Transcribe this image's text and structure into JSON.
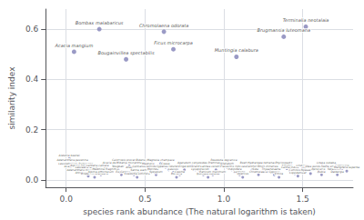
{
  "chart_data": {
    "type": "scatter",
    "title": "",
    "xlabel": "species rank abundance (The natural logarithm is taken)",
    "ylabel": "similarity index",
    "xlim": [
      -0.13,
      1.82
    ],
    "ylim": [
      -0.03,
      0.68
    ],
    "xticks": [
      {
        "value": 0.0,
        "label": "0.0"
      },
      0.5,
      {
        "value": 1.0,
        "label": "1.0"
      },
      1.5
    ],
    "yticks": [
      {
        "value": 0.0,
        "label": "0.0"
      },
      0.2,
      0.4,
      0.6
    ],
    "grid": true,
    "color": "#8888bb",
    "series": [
      {
        "x": [
          0.02,
          0.04,
          0.06,
          0.08,
          0.1,
          0.12,
          0.14,
          0.16,
          0.18,
          0.2,
          0.22,
          0.25,
          0.3,
          0.33,
          0.35,
          0.37,
          0.4,
          0.42,
          0.43,
          0.45,
          0.47,
          0.5,
          0.52,
          0.53,
          0.55,
          0.57,
          0.6,
          0.63,
          0.65,
          0.68,
          0.7,
          0.72,
          0.75,
          0.8,
          0.82,
          0.85,
          0.87,
          0.9,
          0.93,
          0.95,
          0.98,
          1.0,
          1.02,
          1.05,
          1.07,
          1.1,
          1.12,
          1.15,
          1.18,
          1.2,
          1.22,
          1.25,
          1.28,
          1.3,
          1.32,
          1.35,
          1.38,
          1.4,
          1.42,
          1.45,
          1.47,
          1.5,
          1.52,
          1.55,
          1.58,
          1.6,
          1.62,
          1.65,
          1.68,
          1.7,
          1.72,
          1.75,
          1.78
        ],
        "values": [
          0.085,
          0.065,
          0.05,
          0.04,
          0.045,
          0.025,
          0.015,
          0.035,
          0.01,
          0.045,
          0.02,
          0.03,
          0.055,
          0.04,
          0.02,
          0.065,
          0.055,
          0.035,
          0.02,
          0.01,
          0.025,
          0.065,
          0.05,
          0.04,
          0.03,
          0.02,
          0.065,
          0.05,
          0.04,
          0.03,
          0.01,
          0.02,
          0.04,
          0.055,
          0.04,
          0.03,
          0.02,
          0.01,
          0.02,
          0.04,
          0.055,
          0.065,
          0.05,
          0.04,
          0.03,
          0.02,
          0.01,
          0.055,
          0.04,
          0.03,
          0.02,
          0.055,
          0.04,
          0.03,
          0.02,
          0.01,
          0.055,
          0.045,
          0.035,
          0.025,
          0.015,
          0.045,
          0.035,
          0.025,
          0.04,
          0.03,
          0.02,
          0.055,
          0.04,
          0.03,
          0.02,
          0.045,
          0.035
        ],
        "labels": [
          "Alstonia boonei",
          "Adenanthera pavonina",
          "Leucophyllum frutescens",
          "Acalypha angustifolia",
          "Alpinia zerumbet",
          "Adenanthera microsperma",
          "Anredera cordifolia",
          "Leucaena leucocephala",
          "Brodelum scandens",
          "Lantana camara",
          "Alpinia officinarum",
          "Medinilla magnifica",
          "Acacia dealbata",
          "Alugbati",
          "Eugenia",
          "Calotropis procera",
          "Mikania micrantha",
          "Anaphalis",
          "Conocarpus erectus",
          "Guazuma ulmifolia",
          "Senna siamea",
          "Bidens pilosa",
          "Magnolia",
          "Connarus semidecandrus",
          "Morinda",
          "Syzygium",
          "Magnolia champaca",
          "Cissus",
          "Cyperus rotundus",
          "Leucas",
          "Borreria",
          "Cleome",
          "Erigeron",
          "Ageratum conyzoides",
          "Amaranthus",
          "Lycopersicon",
          "Rumex",
          "Ipomoea batatas",
          "Panicum maximum",
          "Lannea coromandelica",
          "Premnaserratifolia",
          "Pouzolzia zeylanica",
          "Ageratum",
          "Flacourtia indica",
          "Indigofera",
          "Lantana",
          "Quercus",
          "Boehmeria",
          "Leucanthemum",
          "Sida",
          "Chromolaena",
          "Hydrangea tomenaosa",
          "Rhus chinensis",
          "Thysanolaena",
          "Cyperus",
          "Emilia",
          "Phyllospadix",
          "Ximenia",
          "Canna indica",
          "Campsis",
          "Liquidambar",
          "Lindernia",
          "Lipia",
          "Nyssasinensis",
          "Olea europaea",
          "Persicaria",
          "Rubia",
          "Litsea cubeba",
          "Toona sinensis",
          "Swietenia",
          "Dalbergia",
          "Cupressus",
          "Mangifera superba"
        ]
      },
      {
        "x": [
          0.05,
          0.21,
          0.38,
          0.62,
          0.68,
          1.08,
          1.38,
          1.52
        ],
        "values": [
          0.51,
          0.6,
          0.48,
          0.59,
          0.52,
          0.49,
          0.57,
          0.61
        ],
        "labels": [
          "Acacia mangium",
          "Bombax malabaricus",
          "Bougainvillea spectabilis",
          "Chromolaena odorata",
          "Ficus microcarpa",
          "Muntingia calabura",
          "Brugmansia luteomana",
          "Terminalia neotalaia"
        ]
      }
    ]
  }
}
